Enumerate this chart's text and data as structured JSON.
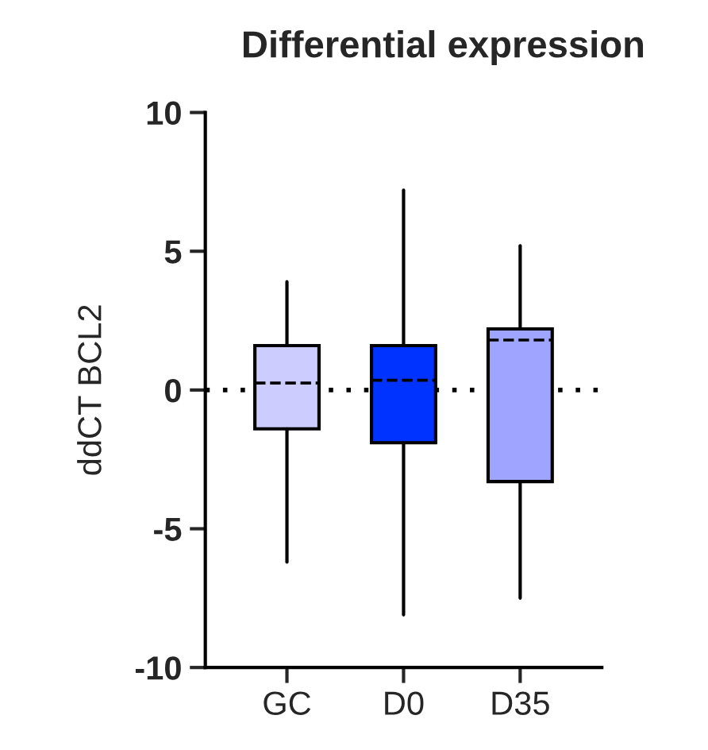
{
  "chart_data": {
    "type": "box",
    "title": "Differential expression",
    "ylabel": "ddCT BCL2",
    "categories": [
      "GC",
      "D0",
      "D35"
    ],
    "colors": [
      "#ccccff",
      "#0033ff",
      "#9fa5ff"
    ],
    "boxes": [
      {
        "low": -6.2,
        "q1": -1.4,
        "median": 0.25,
        "q3": 1.6,
        "high": 3.9
      },
      {
        "low": -8.1,
        "q1": -1.9,
        "median": 0.35,
        "q3": 1.6,
        "high": 7.2
      },
      {
        "low": -7.5,
        "q1": -3.3,
        "median": 1.8,
        "q3": 2.2,
        "high": 5.2
      }
    ],
    "ylim": [
      -10,
      10
    ],
    "yticks": [
      -10,
      -5,
      0,
      5,
      10
    ],
    "ref_lines": [
      {
        "axis": "y",
        "value": 0,
        "line_style": "dotted"
      }
    ],
    "grid": false
  }
}
